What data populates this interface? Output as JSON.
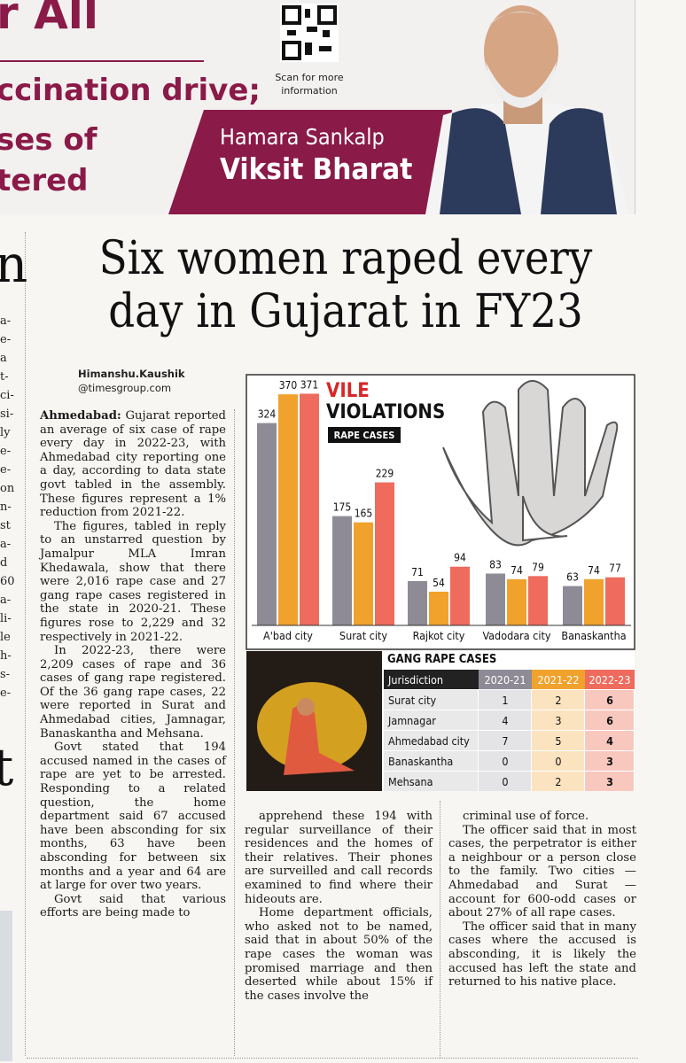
{
  "ad": {
    "headline_lines": [
      "r All",
      "ccination drive;",
      "ses of",
      "tered"
    ],
    "qr_caption": [
      "Scan for more",
      "information"
    ],
    "slogan": [
      "Hamara Sankalp",
      "Viksit Bharat"
    ]
  },
  "left_fragments": {
    "big": [
      "n",
      "t"
    ],
    "lines": [
      "a-",
      "e-",
      "a",
      "t-",
      "ci-",
      "si-",
      "ly",
      "e-",
      "e-",
      "on",
      "n-",
      "st",
      "a-",
      "d",
      "60",
      "a-",
      "li-",
      "le",
      "h-",
      "s-",
      "e-"
    ]
  },
  "headline": [
    "Six women raped every",
    "day in Gujarat in FY23"
  ],
  "byline": {
    "name": "Himanshu.Kaushik",
    "handle": "@timesgroup.com"
  },
  "chart_data": {
    "type": "bar",
    "title": [
      "VILE",
      "VIOLATIONS"
    ],
    "subtitle": "RAPE CASES",
    "categories": [
      "A'bad city",
      "Surat city",
      "Rajkot city",
      "Vadodara city",
      "Banaskantha"
    ],
    "series": [
      {
        "color": "#8f8b96",
        "values": [
          324,
          175,
          71,
          83,
          63
        ]
      },
      {
        "color": "#f0a22c",
        "values": [
          370,
          165,
          54,
          74,
          74
        ]
      },
      {
        "color": "#ee6b5e",
        "values": [
          371,
          229,
          94,
          79,
          77
        ]
      }
    ],
    "ylim": [
      0,
      400
    ]
  },
  "table": {
    "title": "GANG RAPE CASES",
    "header": [
      "Jurisdiction",
      "2020-21",
      "2021-22",
      "2022-23"
    ],
    "rows": [
      [
        "Surat city",
        1,
        2,
        6
      ],
      [
        "Jamnagar",
        4,
        3,
        6
      ],
      [
        "Ahmedabad city",
        7,
        5,
        4
      ],
      [
        "Banaskantha",
        0,
        0,
        3
      ],
      [
        "Mehsana",
        0,
        2,
        3
      ]
    ]
  },
  "article": {
    "dateline": "Ahmedabad:",
    "columns": [
      [
        "Gujarat reported an average of six case of rape every day in 2022-23, with Ahmedabad city reporting one a day, according to data state govt tabled in the assembly. These figures represent a 1% reduction from 2021-22.",
        "The figures, tabled in reply to an unstarred question by Jamalpur MLA Imran Khedawala, show that there were 2,016 rape case and 27 gang rape cases registered in the state in 2020-21. These figures rose to 2,229 and 32 respectively in 2021-22.",
        "In 2022-23, there were 2,209 cases of rape and 36 cases of gang rape registered. Of the 36 gang rape cases, 22 were reported in Surat and Ahmedabad cities, Jamnagar, Banaskantha and Mehsana.",
        "Govt stated that 194 accused named in the cases of rape are yet to be arrested. Responding to a related question, the home department said 67 accused have been absconding for six months, 63 have been absconding for between six months and a year and 64 are at large for over two years.",
        "Govt said that various efforts are being made to"
      ],
      [
        "apprehend these 194 with regular surveillance of their residences and the homes of their relatives. Their phones are surveilled and call records examined to find where their hideouts are.",
        "Home department officials, who asked not to be named, said that in about 50% of the rape cases the woman was promised marriage and then deserted while about 15% if the cases involve the"
      ],
      [
        "criminal use of force.",
        "The officer said that in most cases, the perpetrator is either a neighbour or a person close to the family. Two cities — Ahmedabad and Surat — account for 600-odd cases or about 27% of all rape cases.",
        "The officer said that in many cases where the accused is absconding, it is likely the accused has left the state and returned to his native place."
      ]
    ]
  }
}
